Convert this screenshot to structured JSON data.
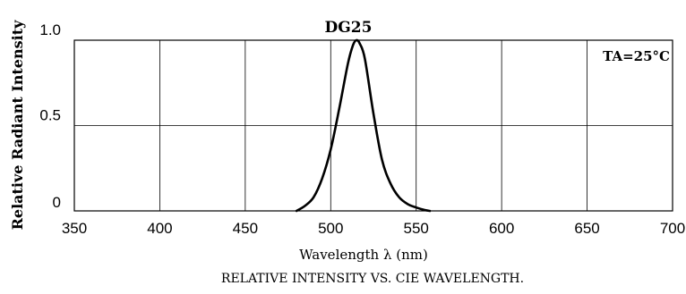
{
  "chart_data": {
    "type": "line",
    "series_label": "DG25",
    "annotation": "TA=25°C",
    "ylabel": "Relative Radiant Intensity",
    "xlabel": "Wavelength λ (nm)",
    "caption": "RELATIVE INTENSITY VS. CIE WAVELENGTH.",
    "xlim": [
      350,
      700
    ],
    "ylim": [
      0,
      1.0
    ],
    "x_ticks": [
      350,
      400,
      450,
      500,
      550,
      600,
      650,
      700
    ],
    "x_tick_labels": [
      "350",
      "400",
      "450",
      "500",
      "550",
      "600",
      "650",
      "700"
    ],
    "y_ticks": [
      0,
      0.5,
      1.0
    ],
    "y_tick_labels": [
      "0",
      "0.5",
      "1.0"
    ],
    "grid": true,
    "x": [
      480,
      485,
      490,
      495,
      500,
      505,
      510,
      513,
      515,
      517,
      520,
      525,
      530,
      535,
      540,
      545,
      550,
      555,
      558
    ],
    "y": [
      0.0,
      0.03,
      0.08,
      0.19,
      0.36,
      0.6,
      0.86,
      0.97,
      1.0,
      0.98,
      0.89,
      0.57,
      0.3,
      0.16,
      0.08,
      0.04,
      0.02,
      0.005,
      0.0
    ]
  }
}
